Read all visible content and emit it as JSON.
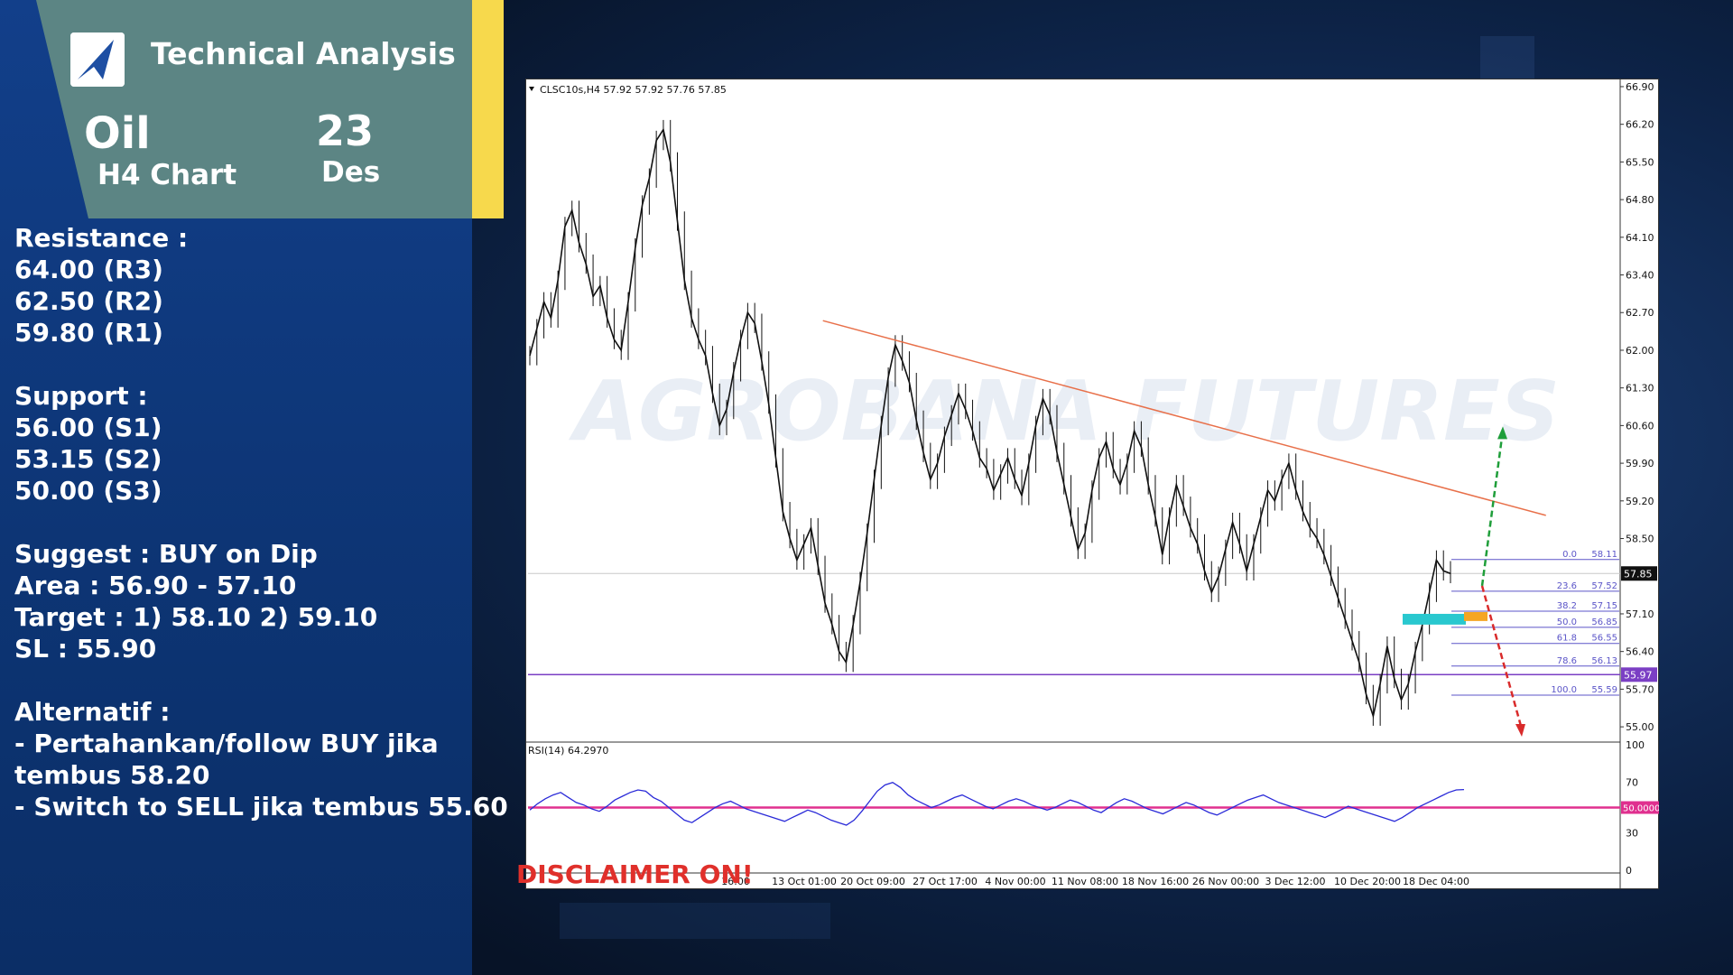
{
  "header": {
    "title": "Technical Analysis",
    "asset": "Oil",
    "timeframe": "H4 Chart",
    "day": "23",
    "month": "Des"
  },
  "notes": {
    "resistance_title": "Resistance :",
    "resistance": [
      "64.00 (R3)",
      "62.50 (R2)",
      "59.80 (R1)"
    ],
    "support_title": "Support :",
    "support": [
      "56.00 (S1)",
      "53.15 (S2)",
      "50.00 (S3)"
    ],
    "suggest": "Suggest :  BUY on Dip",
    "area": "Area : 56.90 - 57.10",
    "target": "Target : 1) 58.10 2) 59.10",
    "sl": "SL : 55.90",
    "alt_title": "Alternatif :",
    "alt_lines": [
      "- Pertahankan/follow BUY jika",
      "tembus 58.20",
      "- Switch to SELL jika tembus 55.60"
    ]
  },
  "disclaimer": "DISCLAIMER ON!",
  "watermark": "AGROBANA FUTURES",
  "colors": {
    "panel": "#0d3575",
    "header_card": "#5c8584",
    "accent": "#f7d94c",
    "trendline": "#e8704a",
    "support_line": "#7b3fc4",
    "fib": "#5b55c8",
    "zone_cyan": "#29c8cf",
    "zone_orange": "#f5a623",
    "up_arrow": "#1f9e3a",
    "down_arrow": "#d92b2b",
    "rsi_line": "#2a2ad8",
    "rsi_mid": "#e0308f",
    "disclaimer": "#e0302b"
  },
  "chart_data": {
    "type": "line",
    "title": "CLSC10s,H4  57.92 57.92 57.76 57.85",
    "ylim": [
      54.75,
      67.0
    ],
    "y_ticks": [
      "66.90",
      "66.20",
      "65.50",
      "64.80",
      "64.10",
      "63.40",
      "62.70",
      "62.00",
      "61.30",
      "60.60",
      "59.90",
      "59.20",
      "58.50",
      "57.85",
      "57.10",
      "56.40",
      "55.97",
      "55.70",
      "55.00"
    ],
    "x_ticks": [
      "13 Oct 01:00",
      "20 Oct 09:00",
      "27 Oct 17:00",
      "4 Nov 00:00",
      "11 Nov 08:00",
      "18 Nov 16:00",
      "26 Nov 00:00",
      "3 Dec 12:00",
      "10 Dec 20:00",
      "18 Dec 04:00"
    ],
    "x_ticks_partial": [
      "16:00"
    ],
    "current_price": 57.85,
    "support_level": 55.97,
    "price_series": {
      "name": "CLSC10s,H4",
      "values": [
        61.9,
        62.4,
        62.9,
        62.6,
        63.3,
        64.3,
        64.6,
        64.0,
        63.6,
        63.0,
        63.2,
        62.6,
        62.2,
        62.0,
        62.9,
        63.9,
        64.7,
        65.2,
        65.9,
        66.1,
        65.5,
        64.4,
        63.3,
        62.6,
        62.2,
        61.9,
        61.2,
        60.6,
        60.9,
        61.6,
        62.2,
        62.7,
        62.5,
        61.8,
        61.0,
        60.0,
        59.0,
        58.5,
        58.1,
        58.4,
        58.7,
        58.0,
        57.3,
        56.9,
        56.4,
        56.2,
        56.9,
        57.7,
        58.6,
        59.6,
        60.6,
        61.5,
        62.1,
        61.8,
        61.4,
        60.7,
        60.1,
        59.6,
        59.9,
        60.4,
        60.8,
        61.2,
        60.9,
        60.5,
        60.0,
        59.8,
        59.4,
        59.7,
        60.0,
        59.6,
        59.3,
        59.9,
        60.6,
        61.1,
        60.8,
        60.1,
        59.5,
        58.9,
        58.3,
        58.6,
        59.4,
        60.0,
        60.3,
        59.8,
        59.5,
        59.9,
        60.5,
        60.2,
        59.5,
        58.9,
        58.2,
        58.9,
        59.5,
        59.1,
        58.7,
        58.4,
        57.9,
        57.5,
        57.8,
        58.3,
        58.8,
        58.4,
        57.9,
        58.4,
        58.9,
        59.4,
        59.2,
        59.6,
        59.9,
        59.4,
        59.0,
        58.7,
        58.5,
        58.2,
        57.8,
        57.4,
        57.0,
        56.6,
        56.2,
        55.6,
        55.2,
        55.8,
        56.5,
        55.9,
        55.5,
        55.8,
        56.4,
        56.9,
        57.5,
        58.1,
        57.9,
        57.85
      ]
    },
    "trendline": {
      "from": [
        0.27,
        62.55
      ],
      "to": [
        0.932,
        58.93
      ]
    },
    "fib_levels": [
      {
        "label": "0.0",
        "value": "58.11"
      },
      {
        "label": "23.6",
        "value": "57.52"
      },
      {
        "label": "38.2",
        "value": "57.15"
      },
      {
        "label": "50.0",
        "value": "56.85"
      },
      {
        "label": "61.8",
        "value": "56.55"
      },
      {
        "label": "78.6",
        "value": "56.13"
      },
      {
        "label": "100.0",
        "value": "55.59"
      }
    ],
    "buy_zone": [
      56.9,
      57.1
    ],
    "up_target": 60.55,
    "down_target": 54.85,
    "rsi": {
      "label": "RSI(14) 64.2970",
      "ylim": [
        0,
        100
      ],
      "y_ticks": [
        "100",
        "70",
        "50.0000",
        "30",
        "0"
      ],
      "level": 50,
      "values": [
        48,
        53,
        57,
        60,
        62,
        58,
        54,
        52,
        49,
        47,
        51,
        56,
        59,
        62,
        64,
        63,
        58,
        55,
        50,
        45,
        40,
        38,
        42,
        46,
        50,
        53,
        55,
        52,
        49,
        47,
        45,
        43,
        41,
        39,
        42,
        45,
        48,
        46,
        43,
        40,
        38,
        36,
        40,
        47,
        55,
        63,
        68,
        70,
        66,
        60,
        56,
        53,
        50,
        52,
        55,
        58,
        60,
        57,
        54,
        51,
        49,
        52,
        55,
        57,
        55,
        52,
        50,
        48,
        50,
        53,
        56,
        54,
        51,
        48,
        46,
        50,
        54,
        57,
        55,
        52,
        49,
        47,
        45,
        48,
        51,
        54,
        52,
        49,
        46,
        44,
        47,
        50,
        53,
        56,
        58,
        60,
        57,
        54,
        52,
        50,
        48,
        46,
        44,
        42,
        45,
        48,
        51,
        49,
        47,
        45,
        43,
        41,
        39,
        42,
        46,
        50,
        53,
        56,
        59,
        62,
        64,
        64.3
      ]
    }
  }
}
